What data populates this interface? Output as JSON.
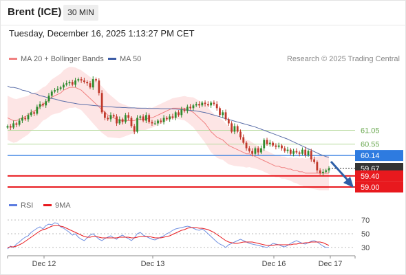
{
  "header": {
    "instrument": "Brent (ICE)",
    "timeframe": "30 MIN",
    "timestamp": "Tuesday, December 16, 2025 1:13:27 PM CET"
  },
  "legend": {
    "ma20_label": "MA 20 + Bollinger Bands",
    "ma50_label": "MA 50",
    "credit": "Research © 2025 Trading Central"
  },
  "rsi_legend": {
    "rsi_label": "RSI",
    "ma_label": "9MA"
  },
  "colors": {
    "candle_up": "#2e8b2e",
    "candle_down": "#c0392b",
    "ma20": "#f08080",
    "bollinger_fill": "#fde0e0",
    "ma50": "#5a6ea8",
    "resistance_line": "#b5d99c",
    "resistance_text": "#6aa84f",
    "pivot": "#2e7be0",
    "support": "#e8191e",
    "last_price": "#333333",
    "rsi": "#6f8fe0",
    "rsi_ma": "#e8191e"
  },
  "chart_data": {
    "type": "candlestick",
    "x_tick_labels": [
      "Dec 12",
      "Dec 13",
      "Dec 16",
      "Dec 17"
    ],
    "price_axis": {
      "min": 58.8,
      "max": 63.4
    },
    "levels": {
      "resistance": [
        61.05,
        60.55
      ],
      "pivot": 60.14,
      "last": 59.67,
      "support": [
        59.4,
        59.0
      ]
    },
    "level_labels": {
      "r1": "61.05",
      "r2": "60.55",
      "pivot": "60.14",
      "last": "59.67",
      "s1": "59.40",
      "s2": "59.00"
    },
    "close": [
      61.2,
      61.15,
      61.3,
      61.25,
      61.4,
      61.5,
      61.45,
      61.6,
      61.7,
      61.65,
      61.9,
      62.0,
      61.95,
      62.1,
      62.3,
      62.45,
      62.5,
      62.55,
      62.6,
      62.7,
      62.75,
      62.8,
      62.7,
      62.85,
      62.9,
      62.85,
      62.8,
      62.75,
      62.6,
      62.9,
      62.85,
      62.4,
      61.7,
      61.5,
      61.45,
      61.6,
      61.55,
      61.3,
      61.45,
      61.35,
      61.6,
      61.5,
      61.2,
      61.0,
      61.5,
      61.55,
      61.4,
      61.6,
      61.35,
      61.3,
      61.3,
      61.4,
      61.35,
      61.5,
      61.45,
      61.55,
      61.5,
      61.7,
      61.6,
      61.8,
      61.75,
      61.9,
      61.85,
      61.95,
      62.0,
      61.95,
      62.05,
      62.0,
      61.95,
      62.05,
      62.0,
      61.85,
      61.6,
      61.7,
      61.45,
      61.3,
      61.0,
      61.2,
      61.0,
      60.8,
      60.6,
      60.4,
      60.3,
      60.2,
      60.4,
      60.25,
      60.4,
      60.7,
      60.55,
      60.6,
      60.5,
      60.45,
      60.5,
      60.4,
      60.3,
      60.35,
      60.2,
      60.3,
      60.25,
      60.2,
      60.35,
      60.15,
      60.3,
      60.0,
      59.9,
      59.6,
      59.5,
      59.55,
      59.6,
      59.67
    ],
    "ma20": [
      61.5,
      61.45,
      61.4,
      61.4,
      61.45,
      61.5,
      61.55,
      61.6,
      61.7,
      61.75,
      61.8,
      61.9,
      62.0,
      62.05,
      62.15,
      62.25,
      62.3,
      62.35,
      62.4,
      62.5,
      62.55,
      62.6,
      62.6,
      62.6,
      62.55,
      62.5,
      62.4,
      62.3,
      62.2,
      62.1,
      62.0,
      61.9,
      61.8,
      61.7,
      61.6,
      61.55,
      61.5,
      61.45,
      61.4,
      61.4,
      61.4,
      61.4,
      61.4,
      61.4,
      61.45,
      61.45,
      61.45,
      61.45,
      61.5,
      61.5,
      61.55,
      61.6,
      61.65,
      61.7,
      61.75,
      61.8,
      61.85,
      61.85,
      61.85,
      61.85,
      61.85,
      61.8,
      61.75,
      61.7,
      61.6,
      61.5,
      61.4,
      61.3,
      61.15,
      61.0,
      60.9,
      60.8,
      60.75,
      60.7,
      60.6,
      60.5,
      60.45,
      60.4,
      60.35,
      60.3,
      60.25,
      60.2,
      60.2,
      60.15,
      60.1,
      60.05,
      60.0,
      59.95,
      59.9,
      59.85,
      59.8,
      59.75,
      59.75,
      59.7,
      59.7,
      59.65,
      59.65,
      59.6,
      59.6,
      59.55,
      59.55,
      59.5,
      59.5,
      59.5,
      59.5,
      59.5,
      59.5,
      59.5,
      59.5,
      59.5
    ],
    "ma50": [
      62.65,
      62.6,
      62.6,
      62.58,
      62.55,
      62.5,
      62.48,
      62.45,
      62.4,
      62.38,
      62.35,
      62.3,
      62.28,
      62.25,
      62.22,
      62.2,
      62.18,
      62.15,
      62.12,
      62.1,
      62.08,
      62.05,
      62.04,
      62.02,
      62.0,
      61.99,
      61.98,
      61.97,
      61.96,
      61.95,
      61.94,
      61.93,
      61.92,
      61.91,
      61.9,
      61.9,
      61.89,
      61.88,
      61.88,
      61.87,
      61.87,
      61.86,
      61.86,
      61.86,
      61.85,
      61.85,
      61.85,
      61.85,
      61.84,
      61.84,
      61.84,
      61.84,
      61.83,
      61.83,
      61.83,
      61.83,
      61.82,
      61.82,
      61.81,
      61.8,
      61.79,
      61.78,
      61.77,
      61.76,
      61.75,
      61.73,
      61.71,
      61.69,
      61.66,
      61.63,
      61.6,
      61.57,
      61.54,
      61.5,
      61.47,
      61.44,
      61.41,
      61.38,
      61.35,
      61.32,
      61.29,
      61.26,
      61.23,
      61.2,
      61.17,
      61.13,
      61.09,
      61.05,
      61.01,
      60.97,
      60.93,
      60.89,
      60.85,
      60.81,
      60.77,
      60.73,
      60.68,
      60.63,
      60.58,
      60.53,
      60.48,
      60.43,
      60.38,
      60.33,
      60.28,
      60.23,
      60.18,
      60.14,
      60.1,
      60.07
    ],
    "bb_width": [
      0.8,
      0.8,
      0.8,
      0.78,
      0.76,
      0.74,
      0.72,
      0.7,
      0.68,
      0.66,
      0.64,
      0.62,
      0.6,
      0.6,
      0.62,
      0.64,
      0.66,
      0.68,
      0.7,
      0.72,
      0.74,
      0.74,
      0.74,
      0.72,
      0.72,
      0.72,
      0.74,
      0.76,
      0.78,
      0.8,
      0.82,
      0.84,
      0.84,
      0.82,
      0.8,
      0.76,
      0.72,
      0.68,
      0.64,
      0.6,
      0.56,
      0.52,
      0.48,
      0.46,
      0.44,
      0.42,
      0.4,
      0.38,
      0.38,
      0.36,
      0.36,
      0.36,
      0.36,
      0.36,
      0.36,
      0.36,
      0.36,
      0.38,
      0.4,
      0.42,
      0.44,
      0.46,
      0.5,
      0.54,
      0.58,
      0.62,
      0.66,
      0.7,
      0.72,
      0.74,
      0.74,
      0.74,
      0.74,
      0.72,
      0.7,
      0.68,
      0.66,
      0.64,
      0.6,
      0.56,
      0.52,
      0.5,
      0.48,
      0.46,
      0.44,
      0.42,
      0.4,
      0.4,
      0.4,
      0.4,
      0.4,
      0.4,
      0.4,
      0.4,
      0.4,
      0.4,
      0.42,
      0.44,
      0.46,
      0.48,
      0.5,
      0.52,
      0.54,
      0.56,
      0.58,
      0.6,
      0.62,
      0.62,
      0.62,
      0.62
    ],
    "rsi_axis": {
      "min": 20,
      "max": 80,
      "ticks": [
        70,
        50,
        30
      ],
      "tick_labels": [
        "70",
        "50",
        "30"
      ]
    },
    "rsi": [
      28,
      32,
      30,
      35,
      38,
      42,
      45,
      47,
      52,
      55,
      58,
      60,
      57,
      62,
      64,
      63,
      66,
      65,
      60,
      58,
      55,
      52,
      48,
      50,
      45,
      42,
      40,
      44,
      48,
      50,
      46,
      42,
      40,
      43,
      45,
      47,
      44,
      42,
      46,
      48,
      45,
      43,
      40,
      44,
      50,
      52,
      48,
      46,
      44,
      42,
      41,
      43,
      45,
      47,
      50,
      52,
      55,
      57,
      58,
      59,
      60,
      61,
      60,
      58,
      56,
      55,
      57,
      54,
      50,
      46,
      42,
      38,
      35,
      33,
      30,
      34,
      36,
      38,
      40,
      42,
      40,
      38,
      36,
      35,
      34,
      33,
      32,
      31,
      30,
      33,
      36,
      35,
      34,
      32,
      31,
      33,
      36,
      38,
      40,
      38,
      36,
      35,
      37,
      39,
      40,
      38,
      35,
      32,
      30,
      30
    ],
    "rsi_ma": [
      30,
      31,
      31,
      32,
      34,
      36,
      39,
      42,
      45,
      48,
      51,
      54,
      56,
      57,
      59,
      61,
      62,
      62,
      61,
      60,
      58,
      56,
      54,
      52,
      50,
      48,
      46,
      45,
      45,
      46,
      46,
      45,
      44,
      44,
      44,
      44,
      44,
      44,
      45,
      45,
      45,
      45,
      44,
      44,
      45,
      46,
      46,
      46,
      46,
      45,
      44,
      44,
      44,
      45,
      46,
      47,
      49,
      51,
      53,
      55,
      56,
      58,
      59,
      59,
      59,
      58,
      58,
      57,
      56,
      54,
      52,
      49,
      46,
      43,
      40,
      38,
      37,
      36,
      36,
      37,
      38,
      38,
      38,
      38,
      37,
      36,
      35,
      34,
      33,
      33,
      33,
      34,
      34,
      34,
      34,
      34,
      34,
      35,
      35,
      36,
      36,
      37,
      37,
      38,
      38,
      38,
      38,
      37,
      35,
      33
    ]
  }
}
